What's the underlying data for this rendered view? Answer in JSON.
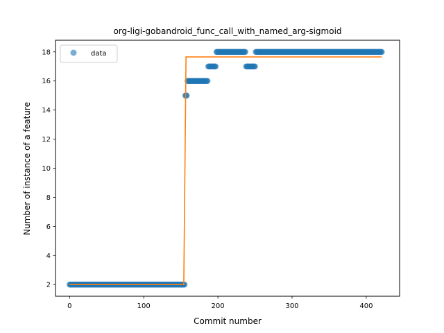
{
  "chart_data": {
    "type": "scatter",
    "title": "org-ligi-gobandroid_func_call_with_named_arg-sigmoid",
    "xlabel": "Commit number",
    "ylabel": "Number of instance of a feature",
    "xlim": [
      -19,
      445
    ],
    "ylim": [
      1.2,
      18.8
    ],
    "xticks": [
      0,
      100,
      200,
      300,
      400
    ],
    "yticks": [
      2,
      4,
      6,
      8,
      10,
      12,
      14,
      16,
      18
    ],
    "grid": false,
    "legend": {
      "placement": "upper-left",
      "entries": [
        "data"
      ]
    },
    "colors": {
      "data": "#1f77b4",
      "fit": "#ff7f0e"
    },
    "series": [
      {
        "name": "data",
        "kind": "scatter",
        "segments": [
          {
            "x_start": 0,
            "x_end": 155,
            "y": 2
          },
          {
            "x_start": 156,
            "x_end": 158,
            "y": 15
          },
          {
            "x_start": 159,
            "x_end": 186,
            "y": 16
          },
          {
            "x_start": 187,
            "x_end": 197,
            "y": 17
          },
          {
            "x_start": 198,
            "x_end": 237,
            "y": 18
          },
          {
            "x_start": 238,
            "x_end": 250,
            "y": 17
          },
          {
            "x_start": 251,
            "x_end": 421,
            "y": 18
          }
        ]
      },
      {
        "kind": "line",
        "points": [
          [
            0,
            2.0
          ],
          [
            154,
            2.0
          ],
          [
            155.5,
            9.8
          ],
          [
            157,
            17.65
          ],
          [
            421,
            17.65
          ]
        ]
      }
    ]
  }
}
